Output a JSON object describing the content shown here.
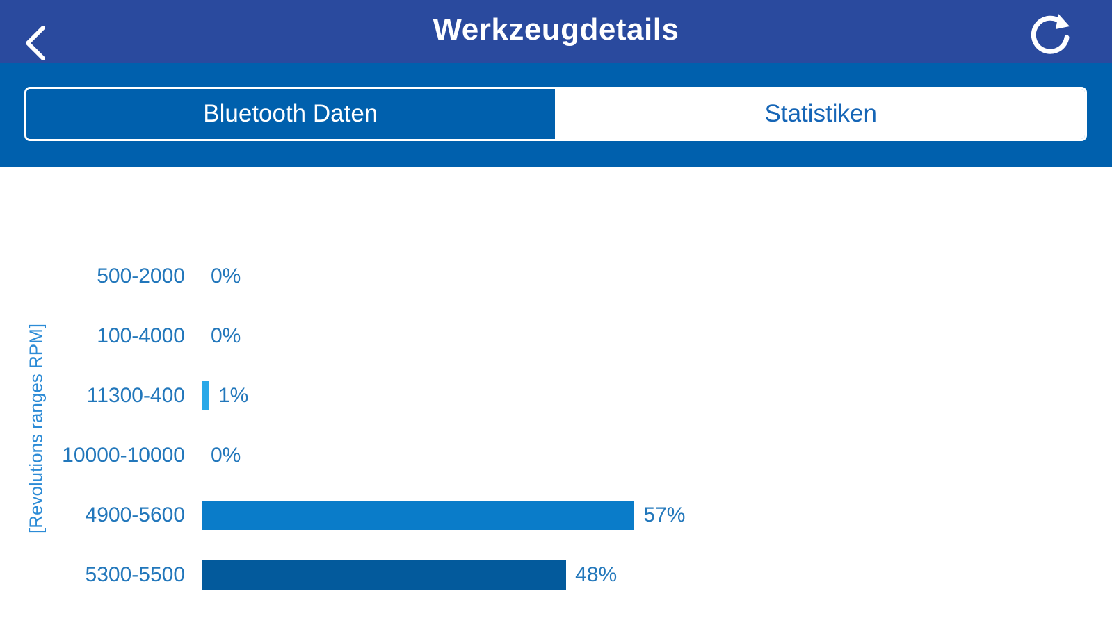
{
  "header": {
    "title": "Werkzeugdetails",
    "back_icon": "chevron-left-icon",
    "refresh_icon": "refresh-icon"
  },
  "tabs": [
    {
      "label": "Bluetooth Daten",
      "selected": true
    },
    {
      "label": "Statistiken",
      "selected": false
    }
  ],
  "colors": {
    "navbar": "#2a4a9e",
    "tabbar": "#0060ad",
    "label_text": "#2277bb",
    "axis_title": "#2c8bd6"
  },
  "chart_data": {
    "type": "bar",
    "orientation": "horizontal",
    "ylabel": "[Revolutions ranges RPM]",
    "categories": [
      "500-2000",
      "100-4000",
      "11300-400",
      "10000-10000",
      "4900-5600",
      "5300-5500"
    ],
    "values": [
      0,
      0,
      1,
      0,
      57,
      48
    ],
    "value_labels": [
      "0%",
      "0%",
      "1%",
      "0%",
      "57%",
      "48%"
    ],
    "bar_colors": [
      "#29a8e8",
      "#29a8e8",
      "#29a8e8",
      "#29a8e8",
      "#0a7cc9",
      "#035a9c"
    ],
    "xlim": [
      0,
      100
    ],
    "grid": false,
    "legend": "none"
  }
}
